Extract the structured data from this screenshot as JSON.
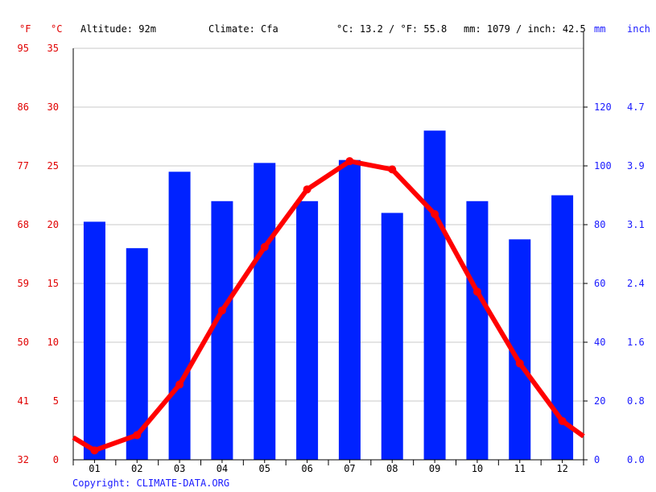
{
  "header": {
    "unit_f": "°F",
    "unit_c": "°C",
    "altitude": "Altitude: 92m",
    "climate": "Climate: Cfa",
    "avg_temp": "°C: 13.2 / °F: 55.8",
    "precip_total": "mm: 1079 / inch: 42.5",
    "unit_mm": "mm",
    "unit_inch": "inch"
  },
  "copyright": "Copyright: CLIMATE-DATA.ORG",
  "colors": {
    "temperature": "#ff0000",
    "precipitation": "#0022ff",
    "left_axis_text": "#e00000",
    "right_axis_text": "#1a1aff",
    "grid": "#c8c8c8",
    "axis": "#000000"
  },
  "chart_data": {
    "type": "bar+line",
    "categories": [
      "01",
      "02",
      "03",
      "04",
      "05",
      "06",
      "07",
      "08",
      "09",
      "10",
      "11",
      "12"
    ],
    "series": [
      {
        "kind": "bar",
        "axis": "right",
        "values": [
          81,
          72,
          98,
          88,
          101,
          88,
          102,
          84,
          112,
          88,
          75,
          90
        ]
      },
      {
        "kind": "line",
        "axis": "left",
        "values": [
          0.8,
          2.1,
          6.4,
          12.7,
          18.1,
          23.0,
          25.4,
          24.7,
          20.9,
          14.3,
          8.2,
          3.3
        ],
        "edge_start": 1.9,
        "edge_end": 2.0
      }
    ],
    "left_axis_c": {
      "ticks": [
        "35",
        "30",
        "25",
        "20",
        "15",
        "10",
        "5",
        "0"
      ],
      "ylim": [
        0,
        35
      ]
    },
    "left_axis_f": {
      "ticks": [
        "95",
        "86",
        "77",
        "68",
        "59",
        "50",
        "41",
        "32"
      ]
    },
    "right_axis_mm": {
      "ticks": [
        "120",
        "100",
        "80",
        "60",
        "40",
        "20",
        "0"
      ],
      "ylim": [
        0,
        140
      ]
    },
    "right_axis_inch": {
      "ticks": [
        "4.7",
        "3.9",
        "3.1",
        "2.4",
        "1.6",
        "0.8",
        "0.0"
      ]
    },
    "grid": true
  }
}
